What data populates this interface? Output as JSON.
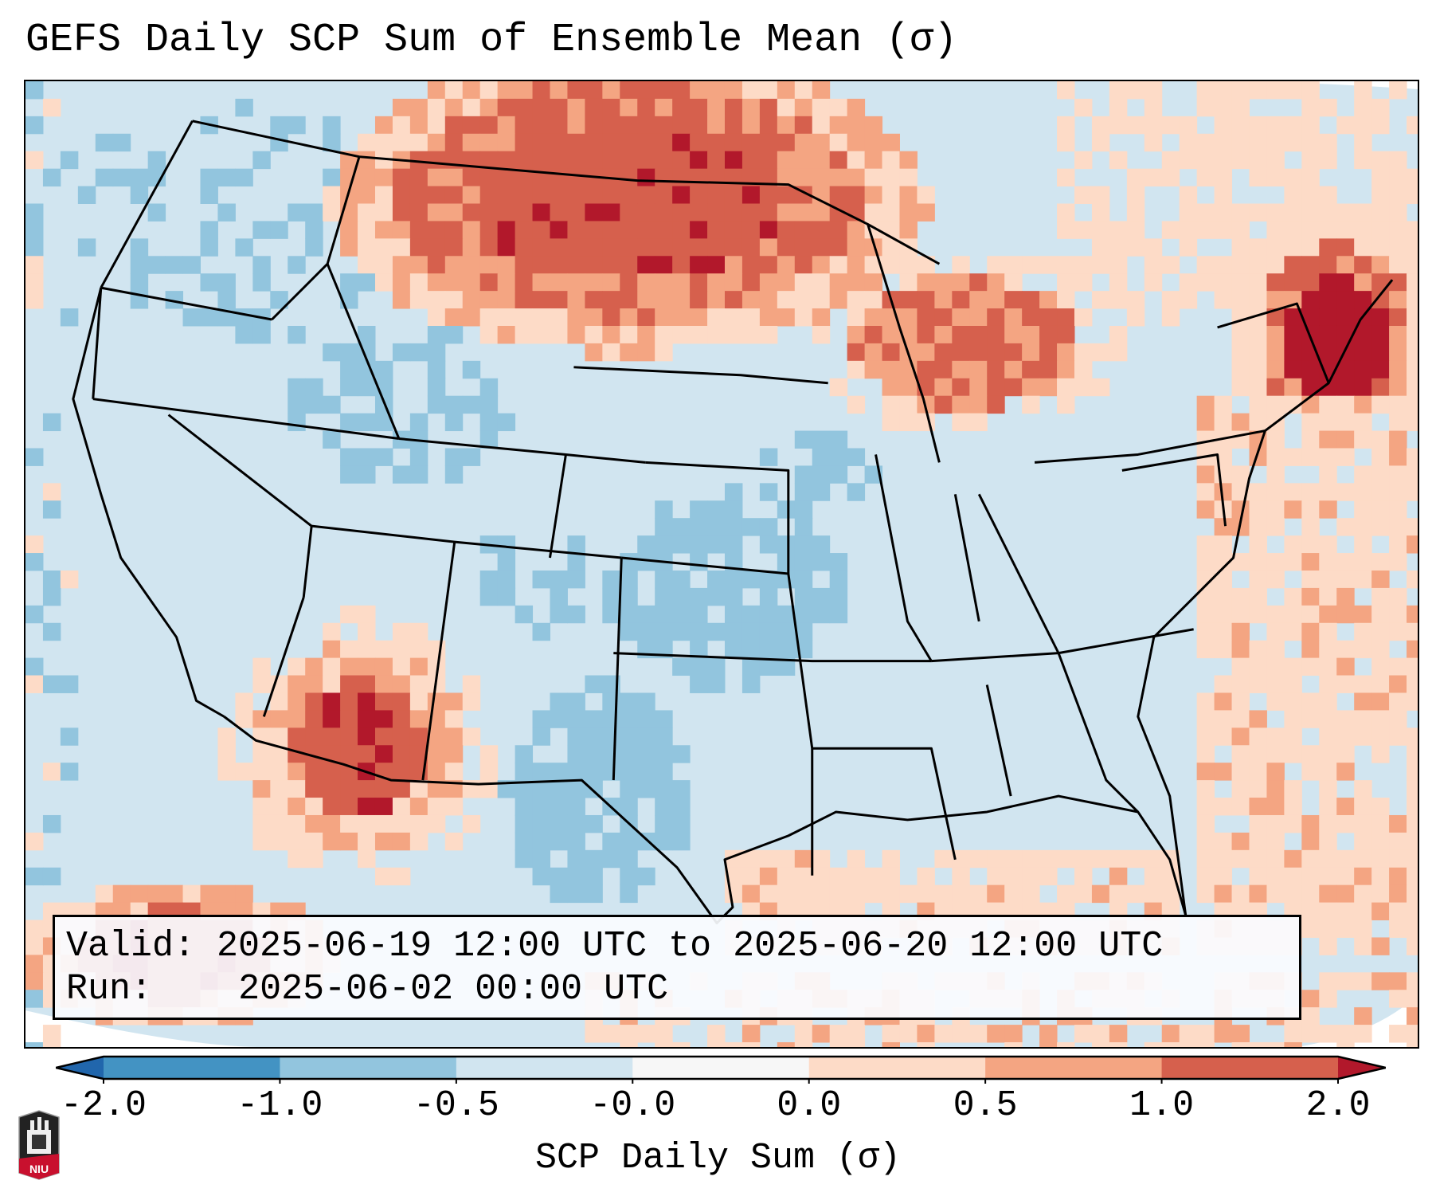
{
  "title": "GEFS Daily SCP Sum of Ensemble Mean (σ)",
  "info_box": {
    "valid_label": "Valid:",
    "valid_value": "2025-06-19 12:00 UTC to 2025-06-20 12:00 UTC",
    "run_label": "Run:",
    "run_value": "2025-06-02 00:00 UTC"
  },
  "colorbar": {
    "label": "SCP Daily Sum (σ)",
    "ticks": [
      "-2.0",
      "-1.0",
      "-0.5",
      "-0.0",
      "0.0",
      "0.5",
      "1.0",
      "2.0"
    ],
    "bins": [
      {
        "range": "< -2.0",
        "color": "#2166ac"
      },
      {
        "range": "-2.0 to -1.0",
        "color": "#4393c3"
      },
      {
        "range": "-1.0 to -0.5",
        "color": "#92c5de"
      },
      {
        "range": "-0.5 to -0.0",
        "color": "#d1e5f0"
      },
      {
        "range": "-0.0 to 0.0",
        "color": "#f7f7f7"
      },
      {
        "range": "0.0 to 0.5",
        "color": "#fddbc7"
      },
      {
        "range": "0.5 to 1.0",
        "color": "#f4a582"
      },
      {
        "range": "1.0 to 2.0",
        "color": "#d6604d"
      },
      {
        "range": "> 2.0",
        "color": "#b2182b"
      }
    ]
  },
  "map": {
    "projection": "Lambert Conformal over CONUS",
    "background_category": "-0.5 to -0.0",
    "regions": [
      {
        "name": "Northern Plains / Montana-Dakotas border",
        "category": "1.0 to 2.0"
      },
      {
        "name": "Upper Great Lakes",
        "category": "0.5 to 1.0"
      },
      {
        "name": "New England coast / Gulf of Maine",
        "category": "> 2.0"
      },
      {
        "name": "Arizona / Sonora",
        "category": "1.0 to 2.0"
      },
      {
        "name": "Eastern Pacific off Baja",
        "category": "1.0 to 2.0"
      },
      {
        "name": "Western Atlantic",
        "category": "0.0 to 0.5"
      },
      {
        "name": "Gulf of Mexico",
        "category": "0.0 to 0.5"
      },
      {
        "name": "Texas / Southern Plains",
        "category": "-1.0 to -0.5"
      },
      {
        "name": "Kansas / Nebraska / Iowa",
        "category": "-1.0 to -0.5"
      },
      {
        "name": "Idaho / Wyoming",
        "category": "-1.0 to -0.5"
      }
    ]
  },
  "logo": {
    "text": "NIU"
  }
}
